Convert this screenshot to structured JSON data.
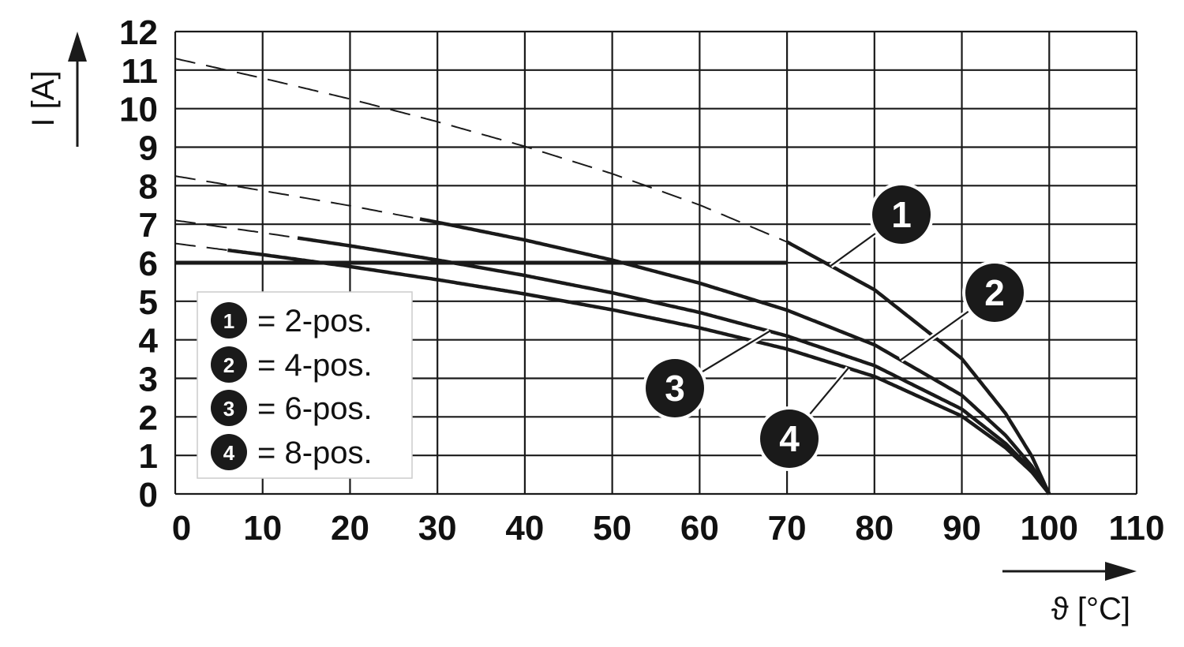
{
  "chart_data": {
    "type": "line",
    "xlabel": "ϑ [°C]",
    "ylabel": "I [A]",
    "xlim": [
      0,
      110
    ],
    "ylim": [
      0,
      12
    ],
    "x_ticks": [
      0,
      10,
      20,
      30,
      40,
      50,
      60,
      70,
      80,
      90,
      100,
      110
    ],
    "y_ticks": [
      0,
      1,
      2,
      3,
      4,
      5,
      6,
      7,
      8,
      9,
      10,
      11,
      12
    ],
    "grid": true,
    "current_limit": 6,
    "series": [
      {
        "marker": "1",
        "legend_text": "= 2-pos.",
        "x": [
          0,
          10,
          20,
          30,
          40,
          50,
          60,
          70,
          80,
          90,
          95,
          98,
          100
        ],
        "y": [
          11.3,
          10.79,
          10.25,
          9.66,
          9.02,
          8.31,
          7.5,
          6.54,
          5.3,
          3.51,
          2.09,
          0.98,
          0
        ],
        "dashed_until_x": 70
      },
      {
        "marker": "2",
        "legend_text": "= 4-pos.",
        "x": [
          0,
          10,
          20,
          30,
          40,
          50,
          60,
          70,
          80,
          90,
          95,
          98,
          100
        ],
        "y": [
          8.25,
          7.87,
          7.48,
          7.05,
          6.59,
          6.07,
          5.47,
          4.77,
          3.87,
          2.56,
          1.52,
          0.72,
          0
        ],
        "dashed_until_x": 28
      },
      {
        "marker": "3",
        "legend_text": "= 6-pos.",
        "x": [
          0,
          10,
          20,
          30,
          40,
          50,
          60,
          70,
          80,
          90,
          95,
          98,
          100
        ],
        "y": [
          7.1,
          6.78,
          6.44,
          6.07,
          5.67,
          5.22,
          4.71,
          4.1,
          3.33,
          2.2,
          1.31,
          0.62,
          0
        ],
        "dashed_until_x": 14
      },
      {
        "marker": "4",
        "legend_text": "= 8-pos.",
        "x": [
          0,
          10,
          20,
          30,
          40,
          50,
          60,
          70,
          80,
          90,
          95,
          98,
          100
        ],
        "y": [
          6.5,
          6.21,
          5.9,
          5.56,
          5.19,
          4.78,
          4.31,
          3.76,
          3.05,
          2.02,
          1.2,
          0.57,
          0
        ],
        "dashed_until_x": 6
      }
    ],
    "legend_position": "bottom-left"
  },
  "style": {
    "line_color": "#1a1a1a",
    "marker_fill": "#1a1a1a",
    "marker_text_color": "#ffffff",
    "grid_color": "#1a1a1a"
  }
}
